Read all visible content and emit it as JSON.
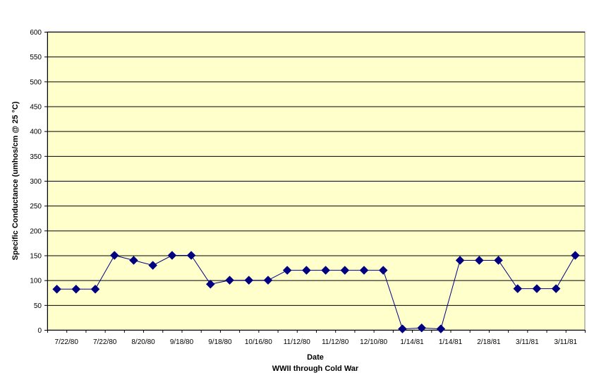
{
  "chart_data": {
    "type": "line",
    "title": "",
    "xlabel": "Date",
    "xlabel_sub": "WWII through Cold War",
    "ylabel": "Specific Conductance (umhos/cm @ 25 °C)",
    "ylim": [
      0,
      600
    ],
    "yticks": [
      0,
      50,
      100,
      150,
      200,
      250,
      300,
      350,
      400,
      450,
      500,
      550,
      600
    ],
    "grid": true,
    "legend": "none",
    "colors": {
      "plot_background": "#FFFFCC",
      "line": "#000080",
      "marker": "#000080",
      "grid": "#000000"
    },
    "x_tick_labels": [
      "7/22/80",
      "7/22/80",
      "8/20/80",
      "9/18/80",
      "9/18/80",
      "10/16/80",
      "11/12/80",
      "11/12/80",
      "12/10/80",
      "1/14/81",
      "1/14/81",
      "2/18/81",
      "3/11/81",
      "3/11/81"
    ],
    "series": [
      {
        "marker": "diamond",
        "values": [
          82,
          82,
          82,
          150,
          140,
          130,
          150,
          150,
          92,
          100,
          100,
          100,
          120,
          120,
          120,
          120,
          120,
          120,
          2,
          4,
          2,
          140,
          140,
          140,
          83,
          83,
          83,
          150
        ]
      }
    ]
  }
}
